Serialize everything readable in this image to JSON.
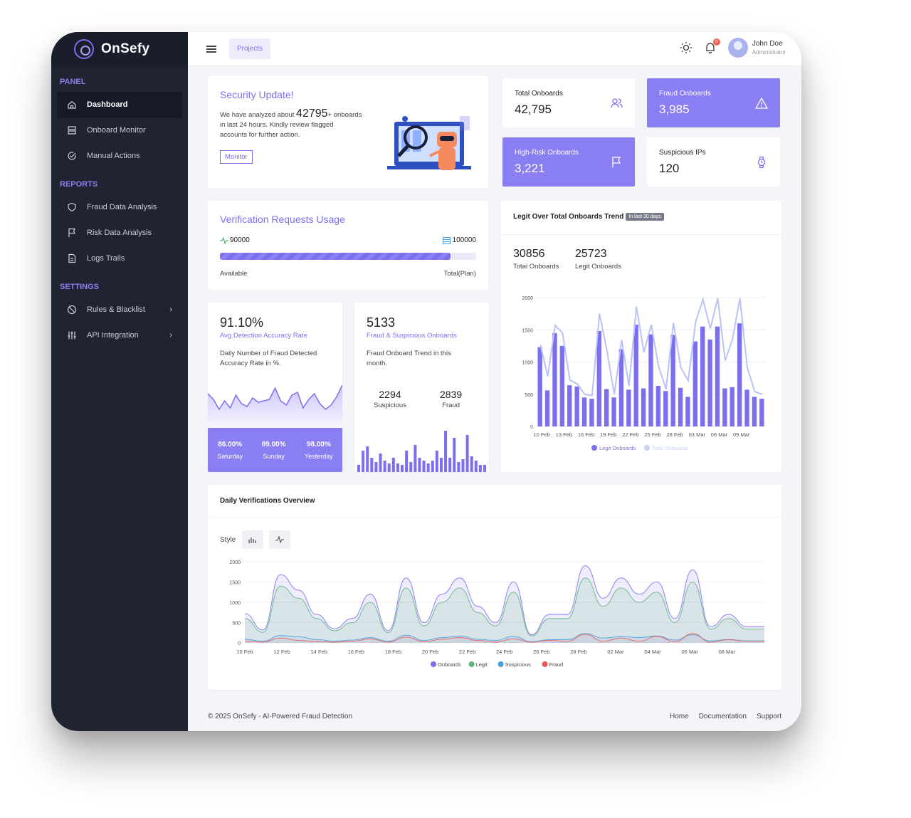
{
  "app": {
    "name": "OnSefy"
  },
  "sidebar": {
    "sections": [
      {
        "title": "PANEL",
        "items": [
          {
            "label": "Dashboard",
            "icon": "home-icon",
            "active": true
          },
          {
            "label": "Onboard Monitor",
            "icon": "server-icon"
          },
          {
            "label": "Manual Actions",
            "icon": "check-circle-icon"
          }
        ]
      },
      {
        "title": "REPORTS",
        "items": [
          {
            "label": "Fraud Data Analysis",
            "icon": "shield-icon"
          },
          {
            "label": "Risk Data Analysis",
            "icon": "flag-icon"
          },
          {
            "label": "Logs Trails",
            "icon": "document-icon"
          }
        ]
      },
      {
        "title": "SETTINGS",
        "items": [
          {
            "label": "Rules & Blacklist",
            "icon": "ban-icon",
            "chevron": true
          },
          {
            "label": "API Integration",
            "icon": "sliders-icon",
            "chevron": true
          }
        ]
      }
    ]
  },
  "topbar": {
    "projects_label": "Projects",
    "notification_count": "0",
    "user_name": "John Doe",
    "user_role": "Administrator"
  },
  "security": {
    "title": "Security Update!",
    "text_before": "We have analyzed about",
    "count": "42795",
    "count_suffix": "+",
    "text_after": "onboards in last 24 hours. Kindly review flagged accounts for further action.",
    "button": "Monitor"
  },
  "stats": {
    "total_onboards": {
      "label": "Total Onboards",
      "value": "42,795"
    },
    "fraud_onboards": {
      "label": "Fraud Onboards",
      "value": "3,985"
    },
    "high_risk": {
      "label": "High-Risk Onboards",
      "value": "3,221"
    },
    "suspicious_ips": {
      "label": "Suspicious IPs",
      "value": "120"
    }
  },
  "usage": {
    "title": "Verification Requests Usage",
    "available_value": "90000",
    "total_value": "100000",
    "available_label": "Available",
    "total_label": "Total(Plan)",
    "progress_fraction": 0.9
  },
  "accuracy": {
    "value": "91.10%",
    "subtitle": "Avg Detection Accuracy Rate",
    "desc": "Daily Number of Fraud Detected Accuracy Rate in %.",
    "kpis": [
      {
        "value": "86.00%",
        "label": "Saturday"
      },
      {
        "value": "89.00%",
        "label": "Sunday"
      },
      {
        "value": "98.00%",
        "label": "Yesterday"
      }
    ]
  },
  "fraud_trend": {
    "value": "5133",
    "subtitle": "Fraud & Suspicious Onboards",
    "desc": "Fraud Onboard Trend in this month.",
    "suspicious_value": "2294",
    "suspicious_label": "Suspicious",
    "fraud_value": "2839",
    "fraud_label": "Fraud"
  },
  "legit_trend": {
    "title": "Legit Over Total Onboards Trend",
    "badge": "In last 30 days",
    "total_value": "30856",
    "total_label": "Total Onboards",
    "legit_value": "25723",
    "legit_label": "Legit Onboards"
  },
  "daily": {
    "title": "Daily Verifications Overview",
    "style_label": "Style"
  },
  "footer": {
    "copyright": "© 2025 OnSefy - AI-Powered Fraud Detection",
    "links": [
      "Home",
      "Documentation",
      "Support"
    ]
  },
  "colors": {
    "accent": "#7b6ff0",
    "sidebar_bg": "#1f2332",
    "legit": "#5cb57a",
    "suspicious": "#4a9fe0",
    "fraud": "#ea5a5a"
  },
  "chart_data": [
    {
      "type": "bar",
      "title": "",
      "x_ticks": [
        "10 Feb",
        "13 Feb",
        "16 Feb",
        "19 Feb",
        "22 Feb",
        "25 Feb",
        "28 Feb",
        "03 Mar",
        "06 Mar",
        "09 Mar"
      ],
      "ylim": [
        0,
        2000
      ],
      "y_ticks": [
        0,
        500,
        1000,
        1500,
        2000
      ],
      "series": [
        {
          "name": "Legit Onboards",
          "type": "bar",
          "values": [
            1230,
            560,
            1450,
            1250,
            640,
            620,
            450,
            430,
            1480,
            580,
            450,
            1200,
            570,
            1580,
            590,
            1430,
            630,
            550,
            1420,
            600,
            460,
            1320,
            1550,
            1350,
            1550,
            590,
            610,
            1600,
            570,
            460,
            430
          ]
        },
        {
          "name": "Total Onboards",
          "type": "line",
          "values": [
            1270,
            780,
            1570,
            1450,
            720,
            660,
            500,
            480,
            1750,
            1180,
            500,
            1340,
            630,
            1860,
            1150,
            1580,
            930,
            580,
            1610,
            920,
            710,
            1620,
            1970,
            1520,
            1990,
            1020,
            1360,
            1990,
            910,
            540,
            500
          ]
        }
      ]
    },
    {
      "type": "area",
      "title": "",
      "x_ticks": [
        "10 Feb",
        "12 Feb",
        "14 Feb",
        "16 Feb",
        "18 Feb",
        "20 Feb",
        "22 Feb",
        "24 Feb",
        "26 Feb",
        "28 Feb",
        "02 Mar",
        "04 Mar",
        "06 Mar",
        "08 Mar"
      ],
      "ylim": [
        0,
        2000
      ],
      "y_ticks": [
        0,
        500,
        1000,
        1500,
        2000
      ],
      "series": [
        {
          "name": "Onboards",
          "values": [
            720,
            320,
            1680,
            1300,
            700,
            350,
            600,
            1200,
            300,
            1600,
            500,
            1200,
            1600,
            900,
            500,
            1500,
            200,
            700,
            700,
            1900,
            1100,
            1600,
            1200,
            1500,
            600,
            1800,
            400,
            700,
            400,
            400
          ]
        },
        {
          "name": "Legit",
          "values": [
            600,
            260,
            1400,
            1100,
            600,
            300,
            500,
            1000,
            250,
            1350,
            420,
            1000,
            1350,
            750,
            420,
            1250,
            170,
            600,
            600,
            1600,
            900,
            1350,
            1000,
            1250,
            500,
            1500,
            340,
            600,
            340,
            340
          ]
        },
        {
          "name": "Suspicious",
          "values": [
            90,
            40,
            180,
            150,
            80,
            40,
            70,
            130,
            40,
            190,
            60,
            130,
            170,
            90,
            60,
            160,
            30,
            80,
            80,
            230,
            120,
            160,
            130,
            170,
            70,
            200,
            50,
            80,
            50,
            50
          ]
        },
        {
          "name": "Fraud",
          "values": [
            40,
            20,
            120,
            60,
            30,
            20,
            40,
            100,
            20,
            140,
            30,
            90,
            130,
            60,
            20,
            100,
            20,
            60,
            40,
            210,
            40,
            120,
            40,
            160,
            30,
            230,
            20,
            80,
            40,
            40
          ]
        }
      ]
    }
  ]
}
